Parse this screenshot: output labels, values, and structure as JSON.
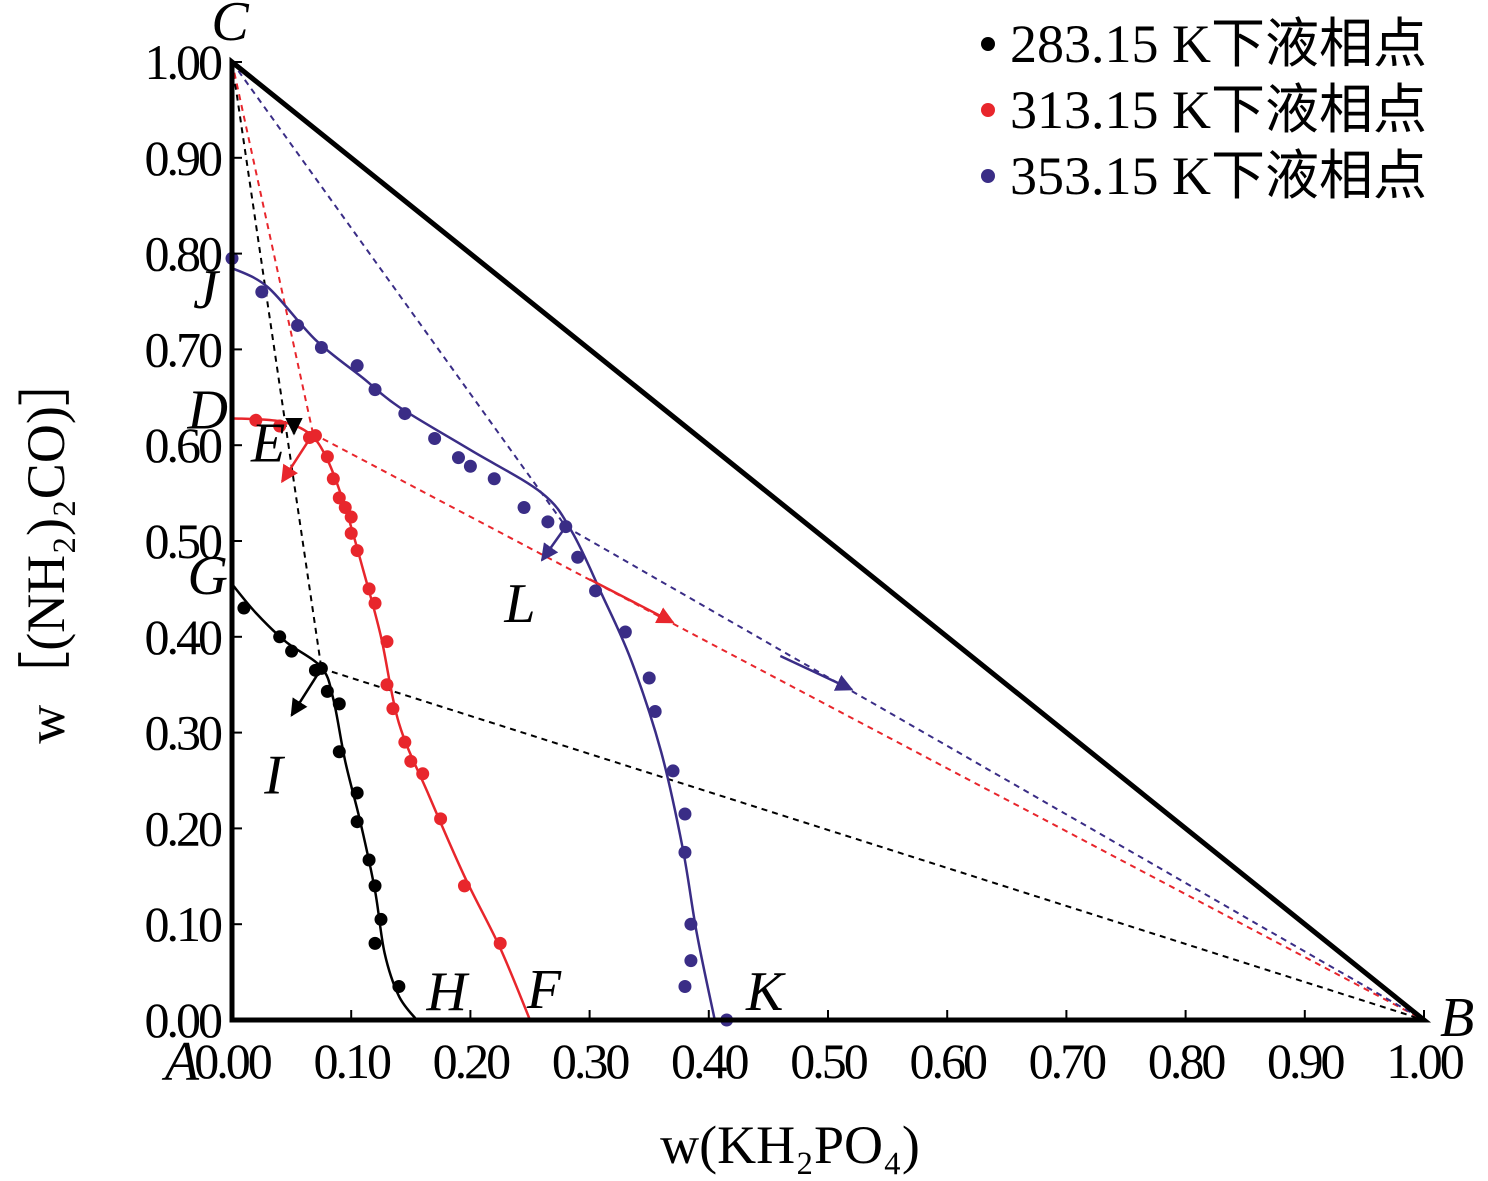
{
  "chart_data": {
    "type": "scatter",
    "subtype": "ternary-phase-diagram",
    "xlabel": "w(KH₂PO₄)",
    "ylabel": "w［(NH₂)₂CO)］",
    "xlim": [
      0,
      1
    ],
    "ylim": [
      0,
      1
    ],
    "x_ticks": [
      "0.00",
      "0.10",
      "0.20",
      "0.30",
      "0.40",
      "0.50",
      "0.60",
      "0.70",
      "0.80",
      "0.90",
      "1.00"
    ],
    "y_ticks": [
      "0.00",
      "0.10",
      "0.20",
      "0.30",
      "0.40",
      "0.50",
      "0.60",
      "0.70",
      "0.80",
      "0.90",
      "1.00"
    ],
    "legend_position": "top-right",
    "series": [
      {
        "name": "283.15 K下液相点",
        "color": "#000000",
        "points": [
          [
            0.01,
            0.43
          ],
          [
            0.04,
            0.4
          ],
          [
            0.05,
            0.385
          ],
          [
            0.07,
            0.365
          ],
          [
            0.075,
            0.367
          ],
          [
            0.08,
            0.343
          ],
          [
            0.09,
            0.33
          ],
          [
            0.09,
            0.28
          ],
          [
            0.105,
            0.237
          ],
          [
            0.105,
            0.207
          ],
          [
            0.115,
            0.167
          ],
          [
            0.12,
            0.14
          ],
          [
            0.125,
            0.105
          ],
          [
            0.12,
            0.08
          ],
          [
            0.14,
            0.035
          ]
        ],
        "curve": [
          [
            0.0,
            0.455
          ],
          [
            0.02,
            0.425
          ],
          [
            0.045,
            0.395
          ],
          [
            0.075,
            0.368
          ],
          [
            0.085,
            0.335
          ],
          [
            0.095,
            0.27
          ],
          [
            0.108,
            0.205
          ],
          [
            0.12,
            0.135
          ],
          [
            0.128,
            0.07
          ],
          [
            0.14,
            0.025
          ],
          [
            0.155,
            0.0
          ]
        ]
      },
      {
        "name": "313.15 K下液相点",
        "color": "#e8262c",
        "points": [
          [
            0.02,
            0.626
          ],
          [
            0.04,
            0.62
          ],
          [
            0.07,
            0.61
          ],
          [
            0.065,
            0.608
          ],
          [
            0.08,
            0.588
          ],
          [
            0.085,
            0.565
          ],
          [
            0.09,
            0.545
          ],
          [
            0.095,
            0.535
          ],
          [
            0.1,
            0.525
          ],
          [
            0.1,
            0.508
          ],
          [
            0.105,
            0.49
          ],
          [
            0.115,
            0.45
          ],
          [
            0.12,
            0.435
          ],
          [
            0.13,
            0.395
          ],
          [
            0.13,
            0.35
          ],
          [
            0.135,
            0.325
          ],
          [
            0.145,
            0.29
          ],
          [
            0.15,
            0.27
          ],
          [
            0.16,
            0.257
          ],
          [
            0.175,
            0.21
          ],
          [
            0.195,
            0.14
          ],
          [
            0.225,
            0.08
          ]
        ],
        "curve": [
          [
            0.0,
            0.628
          ],
          [
            0.04,
            0.625
          ],
          [
            0.065,
            0.612
          ],
          [
            0.08,
            0.585
          ],
          [
            0.095,
            0.535
          ],
          [
            0.11,
            0.47
          ],
          [
            0.125,
            0.4
          ],
          [
            0.14,
            0.31
          ],
          [
            0.165,
            0.235
          ],
          [
            0.195,
            0.15
          ],
          [
            0.225,
            0.075
          ],
          [
            0.25,
            0.0
          ]
        ]
      },
      {
        "name": "353.15 K下液相点",
        "color": "#3a2d86",
        "points": [
          [
            0.0,
            0.795
          ],
          [
            0.025,
            0.76
          ],
          [
            0.055,
            0.725
          ],
          [
            0.075,
            0.702
          ],
          [
            0.105,
            0.683
          ],
          [
            0.12,
            0.658
          ],
          [
            0.145,
            0.633
          ],
          [
            0.17,
            0.607
          ],
          [
            0.19,
            0.587
          ],
          [
            0.2,
            0.578
          ],
          [
            0.22,
            0.565
          ],
          [
            0.245,
            0.535
          ],
          [
            0.265,
            0.52
          ],
          [
            0.28,
            0.515
          ],
          [
            0.29,
            0.483
          ],
          [
            0.305,
            0.448
          ],
          [
            0.33,
            0.405
          ],
          [
            0.35,
            0.357
          ],
          [
            0.355,
            0.322
          ],
          [
            0.37,
            0.26
          ],
          [
            0.38,
            0.215
          ],
          [
            0.38,
            0.175
          ],
          [
            0.385,
            0.1
          ],
          [
            0.385,
            0.062
          ],
          [
            0.38,
            0.035
          ],
          [
            0.415,
            0.0
          ]
        ],
        "curve": [
          [
            0.0,
            0.785
          ],
          [
            0.03,
            0.765
          ],
          [
            0.07,
            0.71
          ],
          [
            0.11,
            0.67
          ],
          [
            0.14,
            0.64
          ],
          [
            0.2,
            0.595
          ],
          [
            0.26,
            0.55
          ],
          [
            0.285,
            0.51
          ],
          [
            0.31,
            0.445
          ],
          [
            0.335,
            0.375
          ],
          [
            0.36,
            0.28
          ],
          [
            0.378,
            0.18
          ],
          [
            0.39,
            0.09
          ],
          [
            0.405,
            0.0
          ]
        ]
      }
    ],
    "tie_lines": [
      {
        "color": "#000000",
        "from": [
          0.0,
          1.0
        ],
        "to": [
          0.075,
          0.367
        ]
      },
      {
        "color": "#000000",
        "from": [
          0.075,
          0.367
        ],
        "to": [
          1.0,
          0.0
        ]
      },
      {
        "color": "#e8262c",
        "from": [
          0.0,
          1.0
        ],
        "to": [
          0.068,
          0.612
        ]
      },
      {
        "color": "#e8262c",
        "from": [
          0.068,
          0.612
        ],
        "to": [
          1.0,
          0.0
        ]
      },
      {
        "color": "#3a2d86",
        "from": [
          0.0,
          1.0
        ],
        "to": [
          0.28,
          0.515
        ]
      },
      {
        "color": "#3a2d86",
        "from": [
          0.28,
          0.515
        ],
        "to": [
          1.0,
          0.0
        ]
      }
    ],
    "arrows": [
      {
        "color": "#000000",
        "from": [
          0.075,
          0.367
        ],
        "to": [
          0.05,
          0.318
        ]
      },
      {
        "color": "#e8262c",
        "from": [
          0.068,
          0.612
        ],
        "to": [
          0.042,
          0.562
        ]
      },
      {
        "color": "#e8262c",
        "from": [
          0.3,
          0.46
        ],
        "to": [
          0.37,
          0.415
        ]
      },
      {
        "color": "#3a2d86",
        "from": [
          0.28,
          0.515
        ],
        "to": [
          0.26,
          0.48
        ]
      },
      {
        "color": "#3a2d86",
        "from": [
          0.46,
          0.38
        ],
        "to": [
          0.52,
          0.345
        ]
      },
      {
        "color": "#000000",
        "from": [
          0.052,
          0.624
        ],
        "to": [
          0.052,
          0.612
        ]
      }
    ],
    "point_labels": [
      {
        "text": "C",
        "x": 0.0,
        "y": 1.0
      },
      {
        "text": "J",
        "x": 0.0,
        "y": 0.785
      },
      {
        "text": "D",
        "x": 0.0,
        "y": 0.628
      },
      {
        "text": "E",
        "x": 0.042,
        "y": 0.562
      },
      {
        "text": "G",
        "x": 0.0,
        "y": 0.455
      },
      {
        "text": "I",
        "x": 0.05,
        "y": 0.318
      },
      {
        "text": "L",
        "x": 0.26,
        "y": 0.48
      },
      {
        "text": "H",
        "x": 0.155,
        "y": 0.0
      },
      {
        "text": "F",
        "x": 0.25,
        "y": 0.0
      },
      {
        "text": "K",
        "x": 0.415,
        "y": 0.0
      },
      {
        "text": "A",
        "x": 0.0,
        "y": 0.0
      },
      {
        "text": "B",
        "x": 1.0,
        "y": 0.0
      }
    ]
  }
}
